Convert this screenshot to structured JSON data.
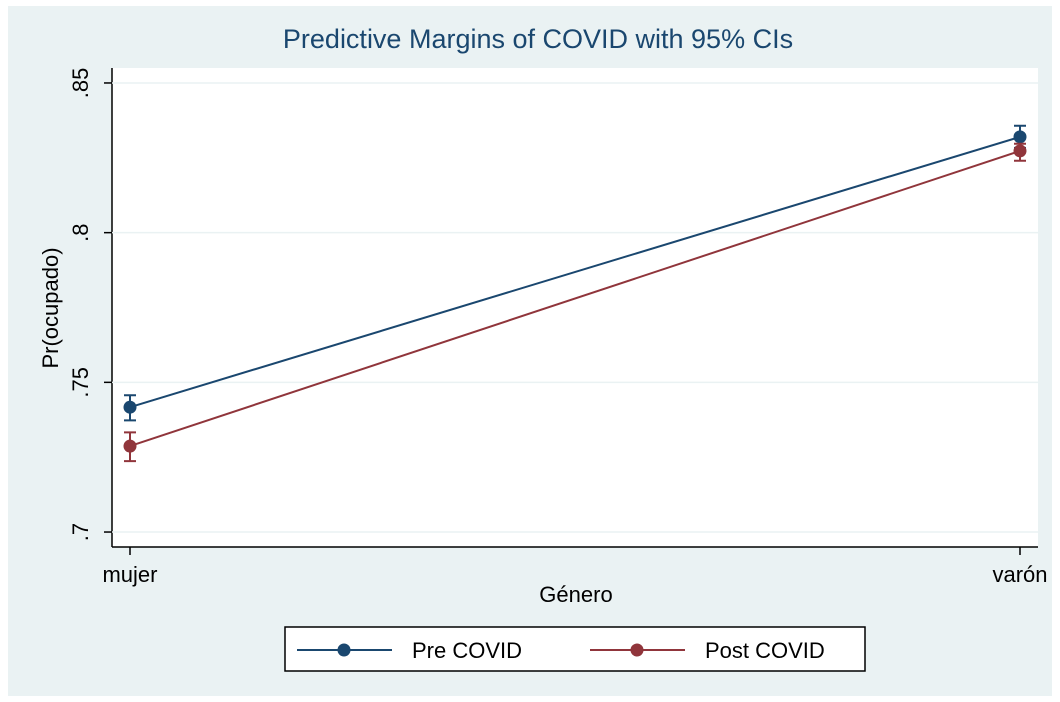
{
  "chart_data": {
    "type": "line",
    "title": "Predictive Margins of COVID with 95% CIs",
    "x_label": "Género",
    "y_label": "Pr(ocupado)",
    "categories": [
      "mujer",
      "varón"
    ],
    "series": [
      {
        "name": "Pre COVID",
        "color": "#1a476f",
        "values": [
          0.7417,
          0.832
        ],
        "ci_low": [
          0.7373,
          0.8283
        ],
        "ci_high": [
          0.7457,
          0.8357
        ]
      },
      {
        "name": "Post COVID",
        "color": "#90353b",
        "values": [
          0.7287,
          0.8273
        ],
        "ci_low": [
          0.7237,
          0.824
        ],
        "ci_high": [
          0.7333,
          0.8297
        ]
      }
    ],
    "ylim": [
      0.695,
      0.855
    ],
    "yticks": [
      {
        "value": 0.7,
        "label": ".7"
      },
      {
        "value": 0.75,
        "label": ".75"
      },
      {
        "value": 0.8,
        "label": ".8"
      },
      {
        "value": 0.85,
        "label": ".85"
      }
    ],
    "grid": true,
    "legend": "bottom"
  }
}
